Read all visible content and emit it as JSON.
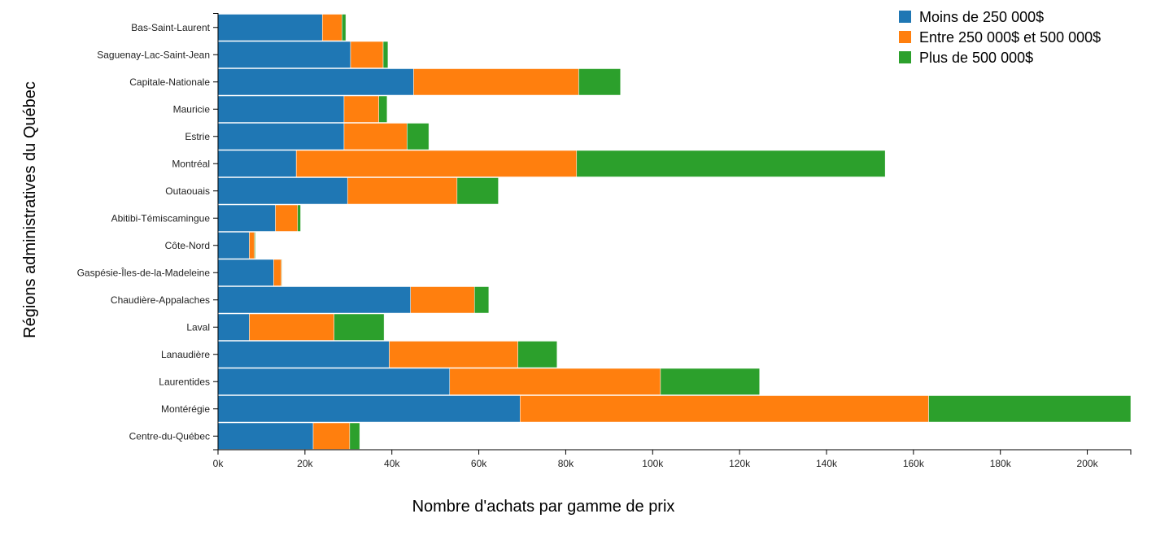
{
  "chart_data": {
    "type": "bar",
    "orientation": "horizontal",
    "stacked": true,
    "xlabel": "Nombre d'achats par gamme de prix",
    "ylabel": "Régions administratives du Québec",
    "xlim": [
      0,
      210000
    ],
    "x_ticks": [
      0,
      20000,
      40000,
      60000,
      80000,
      100000,
      120000,
      140000,
      160000,
      180000,
      200000
    ],
    "x_tick_labels": [
      "0k",
      "20k",
      "40k",
      "60k",
      "80k",
      "100k",
      "120k",
      "140k",
      "160k",
      "180k",
      "200k"
    ],
    "grid": false,
    "legend_position": "top-right",
    "categories": [
      "Bas-Saint-Laurent",
      "Saguenay-Lac-Saint-Jean",
      "Capitale-Nationale",
      "Mauricie",
      "Estrie",
      "Montréal",
      "Outaouais",
      "Abitibi-Témiscamingue",
      "Côte-Nord",
      "Gaspésie-Îles-de-la-Madeleine",
      "Chaudière-Appalaches",
      "Laval",
      "Lanaudière",
      "Laurentides",
      "Montérégie",
      "Centre-du-Québec"
    ],
    "series": [
      {
        "name": "Moins de 250 000$",
        "color": "#1f77b4",
        "values": [
          24000,
          30500,
          45000,
          29000,
          29000,
          18000,
          29800,
          13200,
          7200,
          12800,
          44300,
          7200,
          39400,
          53300,
          69500,
          21900
        ]
      },
      {
        "name": "Entre 250 000$ et 500 000$",
        "color": "#ff7f0e",
        "values": [
          4500,
          7500,
          38000,
          8000,
          14500,
          64500,
          25200,
          5100,
          1200,
          1800,
          14700,
          19500,
          29600,
          48500,
          94000,
          8400
        ]
      },
      {
        "name": "Plus de 500 000$",
        "color": "#2ca02c",
        "values": [
          900,
          1100,
          9600,
          1900,
          5000,
          71000,
          9500,
          700,
          200,
          100,
          3300,
          11500,
          9000,
          22800,
          46500,
          2300
        ]
      }
    ]
  }
}
